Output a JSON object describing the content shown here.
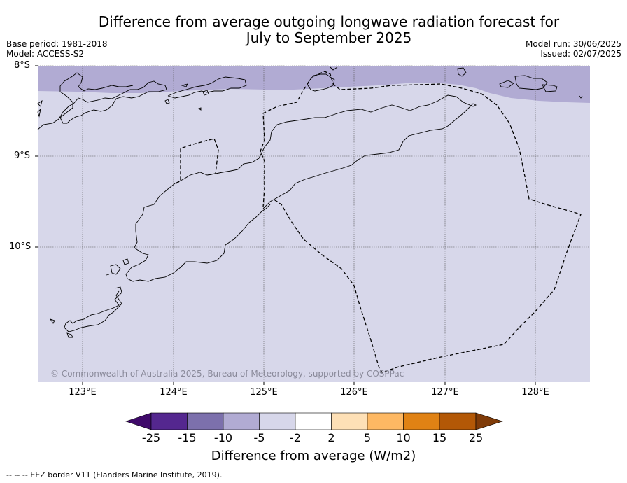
{
  "header": {
    "title_line1": "Difference from average outgoing longwave radiation forecast for",
    "title_line2": "July to September 2025",
    "base_period": "Base period: 1981-2018",
    "model": "Model: ACCESS-S2",
    "model_run": "Model run: 30/06/2025",
    "issued": "Issued: 02/07/2025"
  },
  "map": {
    "lat_labels": [
      "8°S",
      "9°S",
      "10°S"
    ],
    "lon_labels": [
      "123°E",
      "124°E",
      "125°E",
      "126°E",
      "127°E",
      "128°E"
    ],
    "copyright": "© Commonwealth of Australia 2025, Bureau of Meteorology, supported by COSPPac",
    "colors": {
      "background_shade": "#d7d7ea",
      "north_band_shade": "#b1abd3",
      "coastline": "#000000",
      "eez_border": "#000000"
    }
  },
  "colorbar": {
    "ticks": [
      "-25",
      "-15",
      "-10",
      "-5",
      "-2",
      "2",
      "5",
      "10",
      "15",
      "25"
    ],
    "colors": [
      "#3f0a6a",
      "#54278f",
      "#7c70ac",
      "#b1abd3",
      "#d7d7ea",
      "#ffffff",
      "#fee0b6",
      "#fdb863",
      "#e08214",
      "#b35806",
      "#7f3b08"
    ],
    "title": "Difference from average (W/m2)"
  },
  "footnote": "--  --  -- EEZ border V11 (Flanders Marine Institute, 2019)."
}
